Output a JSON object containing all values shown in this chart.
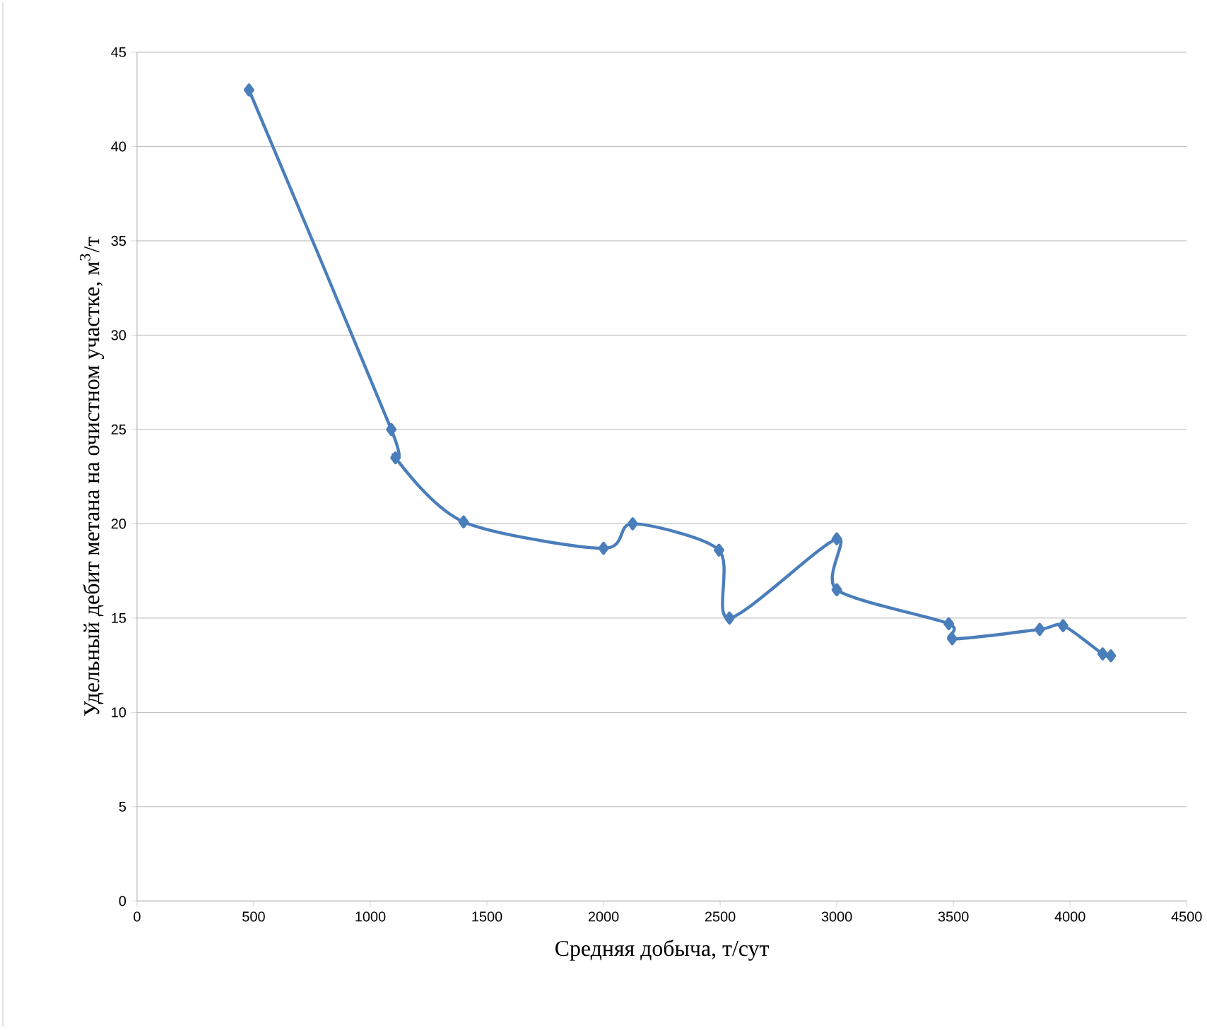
{
  "chart_data": {
    "type": "line",
    "xlabel": "Средняя добыча, т/сут",
    "ylabel": "Удельный дебит метана на очистном участке, м$^{3}$/т",
    "x": [
      480,
      1090,
      1108,
      1400,
      2000,
      2125,
      2495,
      2540,
      3000,
      3000,
      3480,
      3495,
      3870,
      3970,
      4140,
      4175
    ],
    "series": [
      {
        "color": "#4a7ebb",
        "values": [
          43,
          25,
          23.5,
          20.1,
          18.7,
          20,
          18.6,
          15,
          19.2,
          16.5,
          14.7,
          13.9,
          14.4,
          14.6,
          13.1,
          13
        ]
      }
    ],
    "xlim": [
      0,
      4500
    ],
    "xticks": [
      0,
      500,
      1000,
      1500,
      2000,
      2500,
      3000,
      3500,
      4000,
      4500
    ],
    "ylim": [
      0,
      45
    ],
    "yticks": [
      0,
      5,
      10,
      15,
      20,
      25,
      30,
      35,
      40,
      45
    ],
    "grid": "y",
    "marker": "diamond",
    "line_style": "solid"
  }
}
